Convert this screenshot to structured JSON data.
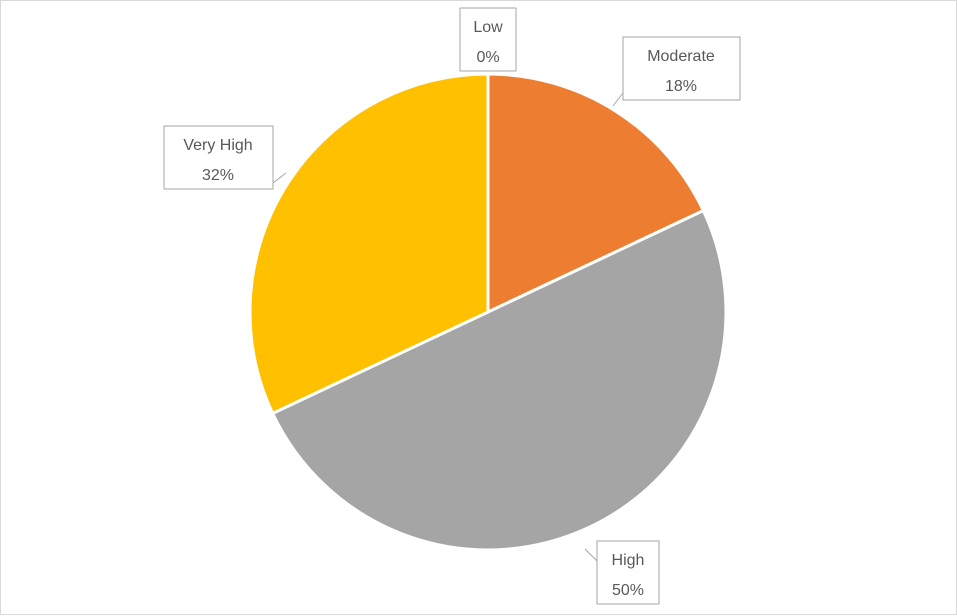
{
  "chart_data": {
    "type": "pie",
    "title": "",
    "legend": "none",
    "categories": [
      "Low",
      "Moderate",
      "High",
      "Very High"
    ],
    "values": [
      0,
      18,
      50,
      32
    ],
    "percent_labels": [
      "0%",
      "18%",
      "50%",
      "32%"
    ],
    "colors": [
      "#4472c4",
      "#ed7d31",
      "#a5a5a5",
      "#ffc000"
    ],
    "start_angle_deg": 0,
    "direction": "clockwise"
  }
}
